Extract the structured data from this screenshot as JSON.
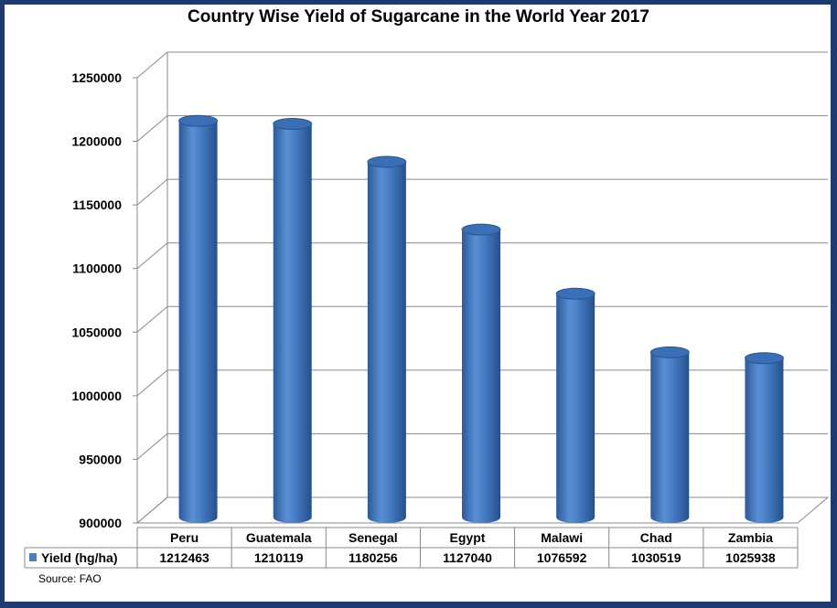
{
  "chart_data": {
    "type": "bar",
    "title": "Country Wise Yield of Sugarcane in the World Year 2017",
    "categories": [
      "Peru",
      "Guatemala",
      "Senegal",
      "Egypt",
      "Malawi",
      "Chad",
      "Zambia"
    ],
    "series": [
      {
        "name": "Yield (hg/ha)",
        "values": [
          1212463,
          1210119,
          1180256,
          1127040,
          1076592,
          1030519,
          1025938
        ]
      }
    ],
    "value_labels": [
      "1212463",
      "1210119",
      "1180256",
      "1127040",
      "1076592",
      "1030519",
      "1025938"
    ],
    "ylim": [
      900000,
      1250000
    ],
    "yticks": [
      900000,
      950000,
      1000000,
      1050000,
      1100000,
      1150000,
      1200000,
      1250000
    ],
    "ytick_labels": [
      "900000",
      "950000",
      "1000000",
      "1050000",
      "1100000",
      "1150000",
      "1200000",
      "1250000"
    ],
    "grid": true,
    "legend_position": "data-table",
    "source": "Source: FAO",
    "bar_color": "#4a7fc6"
  }
}
